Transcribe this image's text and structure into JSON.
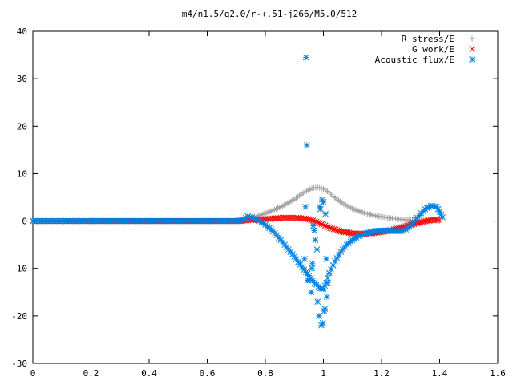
{
  "chart_data": {
    "type": "scatter",
    "title": "m4/n1.5/q2.0/r-+.51-j266/M5.0/512",
    "xlabel": "",
    "ylabel": "",
    "xlim": [
      0,
      1.6
    ],
    "ylim": [
      -30,
      40
    ],
    "x_ticks": [
      0,
      0.2,
      0.4,
      0.6,
      0.8,
      1,
      1.2,
      1.4,
      1.6
    ],
    "x_tick_labels": [
      "0",
      "0.2",
      "0.4",
      "0.6",
      "0.8",
      "1",
      "1.2",
      "1.4",
      "1.6"
    ],
    "y_ticks": [
      -30,
      -20,
      -10,
      0,
      10,
      20,
      30,
      40
    ],
    "y_tick_labels": [
      "-30",
      "-20",
      "-10",
      "0",
      "10",
      "20",
      "30",
      "40"
    ],
    "grid": false,
    "legend_position": "top-right",
    "series": [
      {
        "name": "R stress/E",
        "marker": "plus",
        "color": "#a0a0a0",
        "points": [
          [
            0,
            0
          ],
          [
            0.7,
            0
          ],
          [
            0.74,
            0.6
          ],
          [
            0.78,
            1.2
          ],
          [
            0.82,
            2.1
          ],
          [
            0.86,
            3.2
          ],
          [
            0.9,
            4.6
          ],
          [
            0.93,
            5.9
          ],
          [
            0.96,
            6.9
          ],
          [
            0.98,
            7.1
          ],
          [
            1.0,
            6.8
          ],
          [
            1.02,
            6.0
          ],
          [
            1.04,
            4.9
          ],
          [
            1.07,
            3.6
          ],
          [
            1.1,
            2.6
          ],
          [
            1.14,
            1.7
          ],
          [
            1.18,
            1.1
          ],
          [
            1.22,
            0.7
          ],
          [
            1.26,
            0.4
          ],
          [
            1.3,
            0.2
          ],
          [
            1.35,
            0.1
          ],
          [
            1.4,
            0
          ]
        ]
      },
      {
        "name": "G work/E",
        "marker": "cross",
        "color": "#ff0000",
        "points": [
          [
            0,
            0
          ],
          [
            0.7,
            0
          ],
          [
            0.74,
            0.2
          ],
          [
            0.78,
            0.3
          ],
          [
            0.82,
            0.5
          ],
          [
            0.86,
            0.7
          ],
          [
            0.9,
            0.7
          ],
          [
            0.94,
            0.5
          ],
          [
            0.97,
            0.0
          ],
          [
            1.0,
            -0.8
          ],
          [
            1.03,
            -1.6
          ],
          [
            1.06,
            -2.2
          ],
          [
            1.1,
            -2.6
          ],
          [
            1.14,
            -2.7
          ],
          [
            1.18,
            -2.5
          ],
          [
            1.22,
            -2.1
          ],
          [
            1.26,
            -1.5
          ],
          [
            1.3,
            -0.8
          ],
          [
            1.34,
            -0.2
          ],
          [
            1.37,
            0.2
          ],
          [
            1.4,
            0.3
          ]
        ]
      },
      {
        "name": "Acoustic flux/E",
        "marker": "star",
        "color": "#0080e0",
        "points": [
          [
            0,
            0
          ],
          [
            0.72,
            0
          ],
          [
            0.74,
            1.0
          ],
          [
            0.76,
            0.6
          ],
          [
            0.78,
            0
          ],
          [
            0.8,
            -0.8
          ],
          [
            0.82,
            -1.8
          ],
          [
            0.84,
            -3.0
          ],
          [
            0.86,
            -4.5
          ],
          [
            0.88,
            -6.0
          ],
          [
            0.9,
            -7.5
          ],
          [
            0.92,
            -9.2
          ],
          [
            0.94,
            -10.8
          ],
          [
            0.95,
            -11.5
          ],
          [
            0.97,
            -13.0
          ],
          [
            0.99,
            -14.2
          ],
          [
            1.0,
            -14.3
          ],
          [
            1.01,
            -13.0
          ],
          [
            1.02,
            -11.0
          ],
          [
            1.04,
            -8.5
          ],
          [
            1.06,
            -6.5
          ],
          [
            1.08,
            -5.0
          ],
          [
            1.1,
            -4.0
          ],
          [
            1.12,
            -3.2
          ],
          [
            1.15,
            -2.5
          ],
          [
            1.18,
            -2.1
          ],
          [
            1.21,
            -2.0
          ],
          [
            1.24,
            -2.1
          ],
          [
            1.27,
            -2.1
          ],
          [
            1.29,
            -1.6
          ],
          [
            1.31,
            -0.3
          ],
          [
            1.33,
            1.2
          ],
          [
            1.35,
            2.5
          ],
          [
            1.37,
            3.2
          ],
          [
            1.39,
            3.0
          ],
          [
            1.4,
            2.0
          ],
          [
            1.41,
            0.8
          ]
        ],
        "outliers": [
          [
            0.94,
            34.5
          ],
          [
            0.943,
            16
          ],
          [
            0.938,
            3
          ],
          [
            0.935,
            -8
          ],
          [
            0.945,
            -12.5
          ],
          [
            0.952,
            -12.5
          ],
          [
            0.958,
            -15
          ],
          [
            0.96,
            -10
          ],
          [
            0.962,
            -9
          ],
          [
            0.965,
            -1
          ],
          [
            0.968,
            -2
          ],
          [
            0.972,
            -4
          ],
          [
            0.978,
            -6
          ],
          [
            0.98,
            -17
          ],
          [
            0.985,
            -20
          ],
          [
            0.988,
            3
          ],
          [
            0.99,
            2.5
          ],
          [
            0.993,
            -22
          ],
          [
            0.995,
            4.5
          ],
          [
            0.998,
            -21.5
          ],
          [
            1.0,
            4
          ],
          [
            1.003,
            -19
          ],
          [
            1.005,
            -18.5
          ],
          [
            1.007,
            1.5
          ],
          [
            1.01,
            -8
          ],
          [
            1.012,
            -16
          ],
          [
            1.015,
            -13
          ]
        ]
      }
    ]
  }
}
